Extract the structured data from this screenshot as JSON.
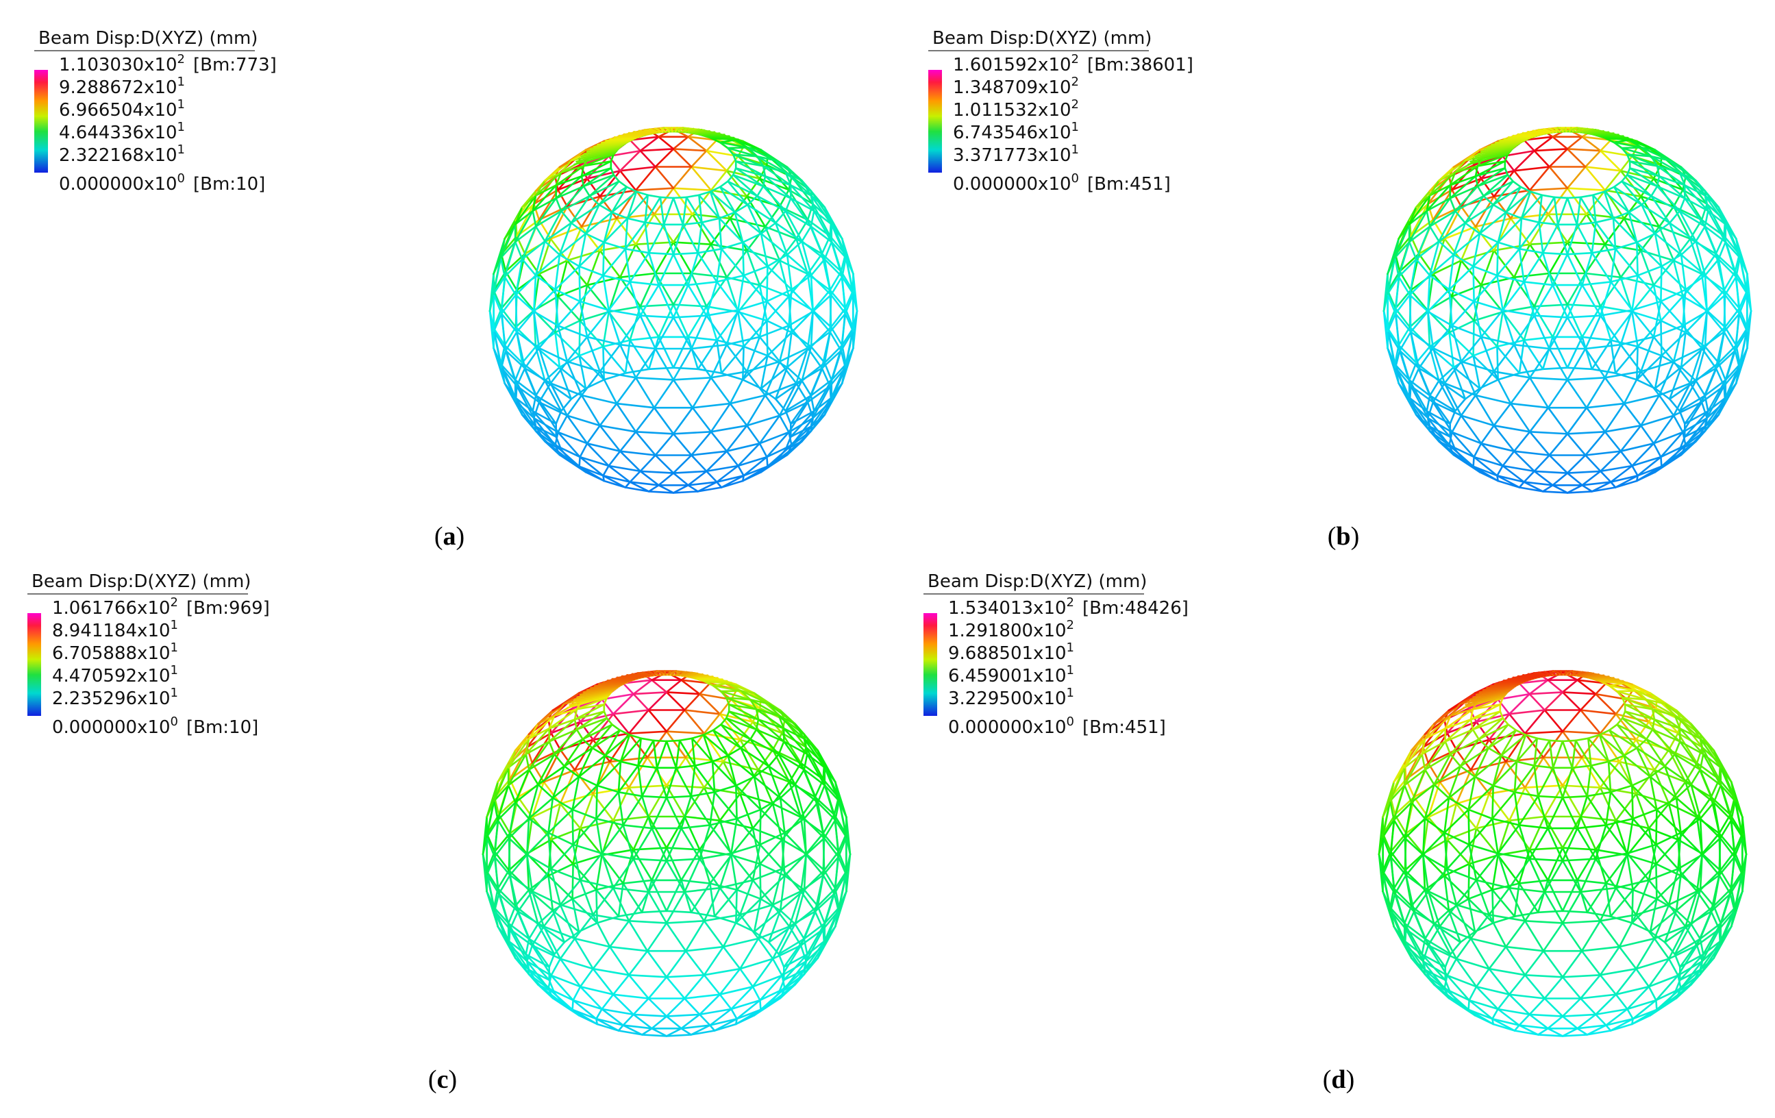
{
  "panels": [
    {
      "legend": {
        "title": "Beam Disp:D(XYZ)  (mm)",
        "labels": [
          {
            "mantissa": "1.103030x10",
            "exponent": "2",
            "note": "[Bm:773]"
          },
          {
            "mantissa": "9.288672x10",
            "exponent": "1"
          },
          {
            "mantissa": "6.966504x10",
            "exponent": "1"
          },
          {
            "mantissa": "4.644336x10",
            "exponent": "1"
          },
          {
            "mantissa": "2.322168x10",
            "exponent": "1"
          },
          {
            "mantissa": "0.000000x10",
            "exponent": "0",
            "note": "[Bm:10]"
          }
        ]
      },
      "caption": [
        "(",
        "a",
        ")"
      ]
    },
    {
      "legend": {
        "title": "Beam Disp:D(XYZ)  (mm)",
        "labels": [
          {
            "mantissa": "1.601592x10",
            "exponent": "2",
            "note": "[Bm:38601]"
          },
          {
            "mantissa": "1.348709x10",
            "exponent": "2"
          },
          {
            "mantissa": "1.011532x10",
            "exponent": "2"
          },
          {
            "mantissa": "6.743546x10",
            "exponent": "1"
          },
          {
            "mantissa": "3.371773x10",
            "exponent": "1"
          },
          {
            "mantissa": "0.000000x10",
            "exponent": "0",
            "note": "[Bm:451]"
          }
        ]
      },
      "caption": [
        "(",
        "b",
        ")"
      ]
    },
    {
      "legend": {
        "title": "Beam Disp:D(XYZ)  (mm)",
        "labels": [
          {
            "mantissa": "1.061766x10",
            "exponent": "2",
            "note": "[Bm:969]"
          },
          {
            "mantissa": "8.941184x10",
            "exponent": "1"
          },
          {
            "mantissa": "6.705888x10",
            "exponent": "1"
          },
          {
            "mantissa": "4.470592x10",
            "exponent": "1"
          },
          {
            "mantissa": "2.235296x10",
            "exponent": "1"
          },
          {
            "mantissa": "0.000000x10",
            "exponent": "0",
            "note": "[Bm:10]"
          }
        ]
      },
      "caption": [
        "(",
        "c",
        ")"
      ]
    },
    {
      "legend": {
        "title": "Beam Disp:D(XYZ)  (mm)",
        "labels": [
          {
            "mantissa": "1.534013x10",
            "exponent": "2",
            "note": "[Bm:48426]"
          },
          {
            "mantissa": "1.291800x10",
            "exponent": "2"
          },
          {
            "mantissa": "9.688501x10",
            "exponent": "1"
          },
          {
            "mantissa": "6.459001x10",
            "exponent": "1"
          },
          {
            "mantissa": "3.229500x10",
            "exponent": "1"
          },
          {
            "mantissa": "0.000000x10",
            "exponent": "0",
            "note": "[Bm:451]"
          }
        ]
      },
      "caption": [
        "(",
        "d",
        ")"
      ]
    }
  ]
}
